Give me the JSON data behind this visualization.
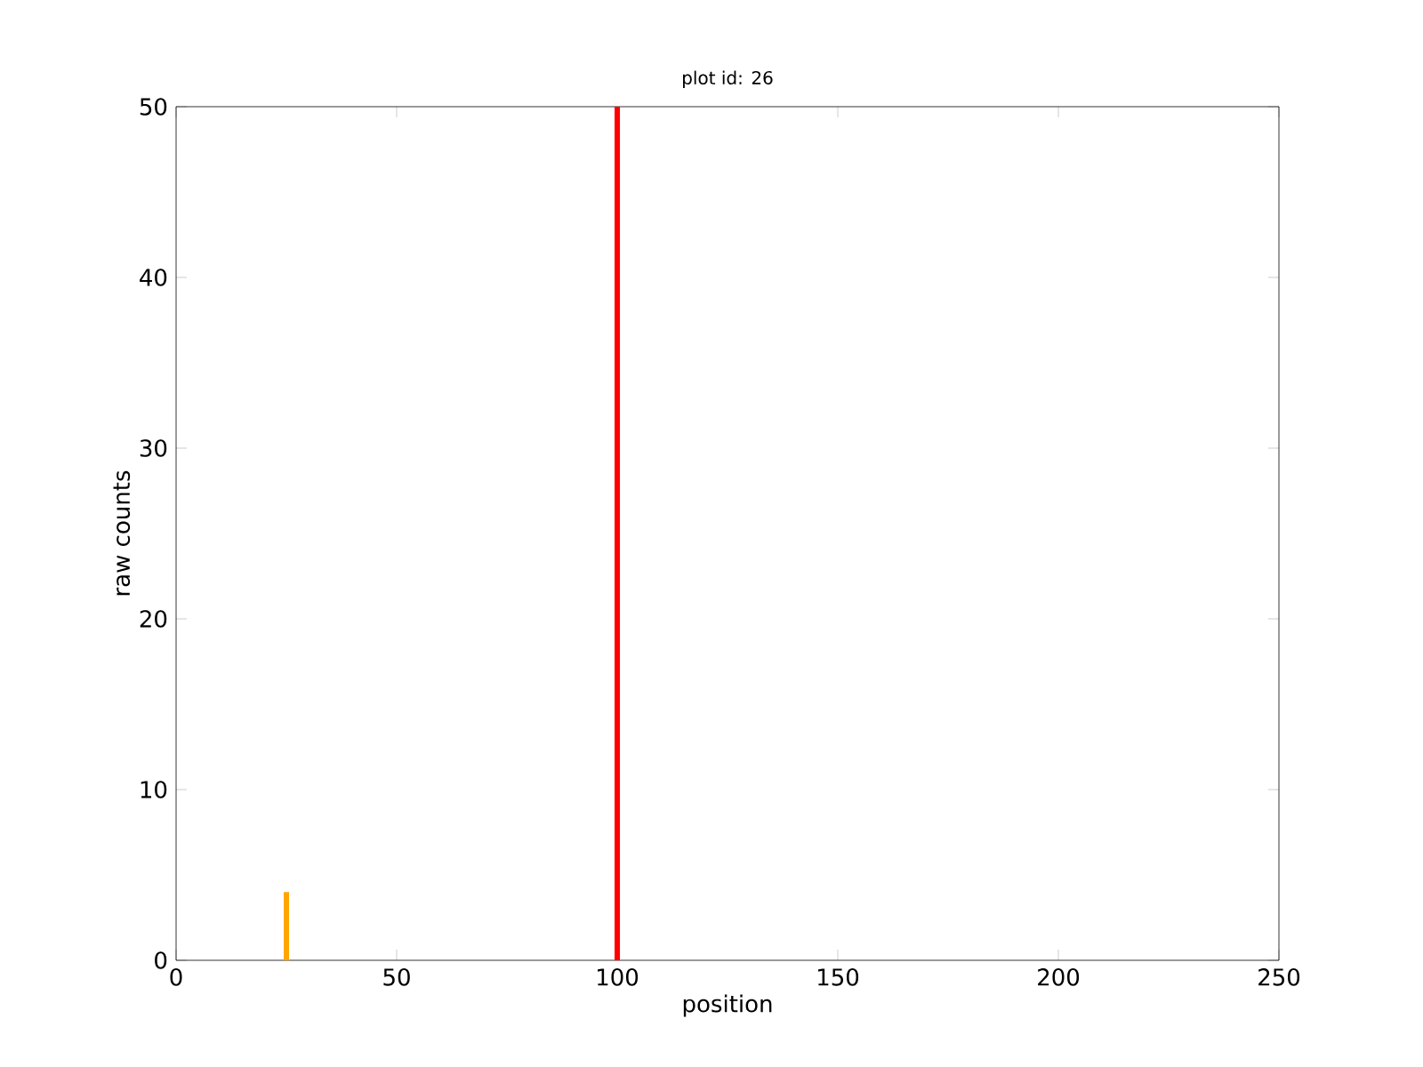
{
  "chart_data": {
    "type": "bar",
    "title": "plot id: 26",
    "xlabel": "position",
    "ylabel": "raw counts",
    "x": [
      25,
      100
    ],
    "values": [
      4,
      50
    ],
    "colors": [
      "#ffa500",
      "#ff0000"
    ],
    "xlim": [
      0,
      250
    ],
    "ylim": [
      0,
      50
    ],
    "xticks": [
      0,
      50,
      100,
      150,
      200,
      250
    ],
    "yticks": [
      0,
      10,
      20,
      30,
      40,
      50
    ]
  }
}
